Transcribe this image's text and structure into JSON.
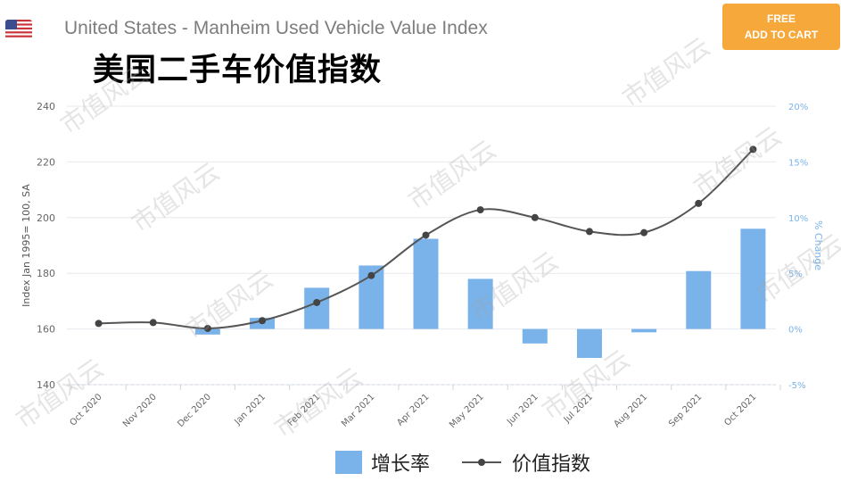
{
  "header": {
    "title": "United States - Manheim Used Vehicle Value Index",
    "cart_line1": "FREE",
    "cart_line2": "ADD TO CART"
  },
  "watermark": "市值风云",
  "chart_data": {
    "type": "bar+line",
    "title": "美国二手车价值指数",
    "categories": [
      "Oct 2020",
      "Nov 2020",
      "Dec 2020",
      "Jan 2021",
      "Feb 2021",
      "Mar 2021",
      "Apr 2021",
      "May 2021",
      "Jun 2021",
      "Jul 2021",
      "Aug 2021",
      "Sep 2021",
      "Oct 2021"
    ],
    "series": [
      {
        "name": "增长率",
        "type": "bar",
        "axis": "right",
        "color": "#7ab3ea",
        "values": [
          0.0,
          0.0,
          -0.5,
          1.0,
          3.7,
          5.7,
          8.1,
          4.5,
          -1.3,
          -2.6,
          -0.3,
          5.2,
          9.0
        ]
      },
      {
        "name": "价值指数",
        "type": "line",
        "axis": "left",
        "color": "#555555",
        "values": [
          162.0,
          162.3,
          160.2,
          163.0,
          169.5,
          179.2,
          193.7,
          202.8,
          200.0,
          195.0,
          194.6,
          205.1,
          224.5
        ]
      }
    ],
    "y_left": {
      "label": "Index Jan 1995= 100, SA",
      "ticks": [
        "240",
        "220",
        "200",
        "180",
        "160",
        "140"
      ],
      "lim": [
        140,
        240
      ]
    },
    "y_right": {
      "label": "% Change",
      "ticks": [
        "20%",
        "15%",
        "10%",
        "5%",
        "0%",
        "-5%"
      ],
      "lim": [
        -5,
        20
      ]
    },
    "grid": true,
    "legend_position": "bottom"
  }
}
